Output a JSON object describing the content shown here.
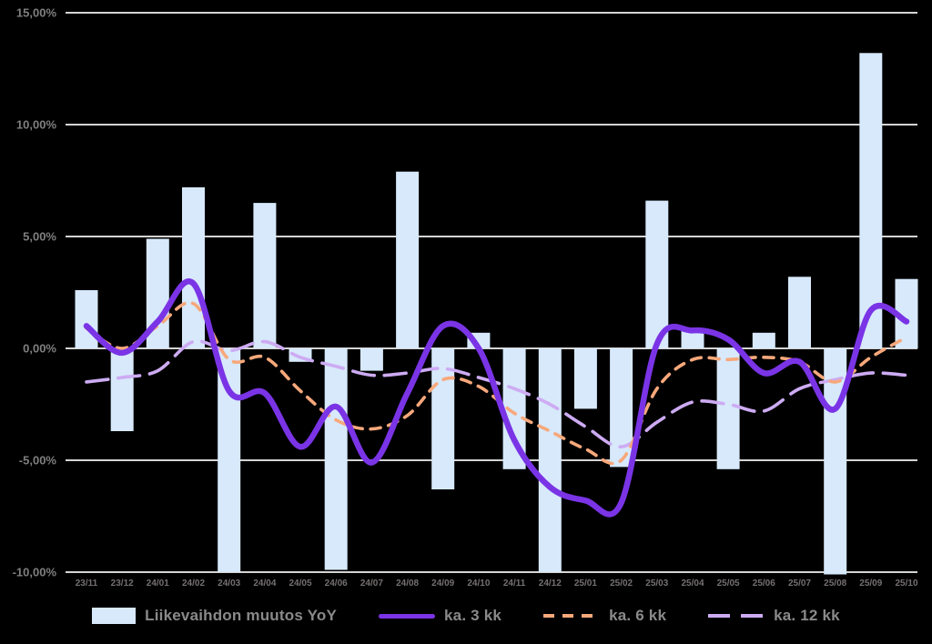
{
  "chart_data": {
    "type": "bar+line",
    "title": "",
    "categories": [
      "23/11",
      "23/12",
      "24/01",
      "24/02",
      "24/03",
      "24/04",
      "24/05",
      "24/06",
      "24/07",
      "24/08",
      "24/09",
      "24/10",
      "24/11",
      "24/12",
      "25/01",
      "25/02",
      "25/03",
      "25/04",
      "25/05",
      "25/06",
      "25/07",
      "25/08",
      "25/09",
      "25/10"
    ],
    "bar_series": {
      "name": "Liikevaihdon muutos YoY",
      "color": "#D7E9FB",
      "values": [
        2.6,
        -3.7,
        4.9,
        7.2,
        -10.0,
        6.5,
        -0.6,
        -9.9,
        -1.0,
        7.9,
        -6.3,
        0.7,
        -5.4,
        -10.0,
        -2.7,
        -5.3,
        6.6,
        0.8,
        -5.4,
        0.7,
        3.2,
        -10.1,
        13.2,
        3.1
      ]
    },
    "line_series": [
      {
        "name": "ka. 3 kk",
        "color": "#7A34E6",
        "style": "solid",
        "values": [
          1.0,
          -0.2,
          1.2,
          2.9,
          -1.9,
          -2.0,
          -4.4,
          -2.6,
          -5.1,
          -2.0,
          1.0,
          0.0,
          -4.1,
          -6.2,
          -6.8,
          -6.9,
          0.2,
          0.8,
          0.4,
          -1.1,
          -0.6,
          -2.7,
          1.7,
          1.2
        ]
      },
      {
        "name": "ka. 6 kk",
        "color": "#F7A87B",
        "style": "dashed",
        "values": [
          0.9,
          0.0,
          1.0,
          2.0,
          -0.5,
          -0.4,
          -1.9,
          -3.2,
          -3.6,
          -3.0,
          -1.4,
          -1.7,
          -2.9,
          -3.7,
          -4.5,
          -5.0,
          -1.8,
          -0.5,
          -0.5,
          -0.4,
          -0.6,
          -1.5,
          -0.4,
          0.5
        ]
      },
      {
        "name": "ka. 12 kk",
        "color": "#CDABF3",
        "style": "long-dashed",
        "values": [
          -1.5,
          -1.3,
          -1.0,
          0.3,
          -0.1,
          0.3,
          -0.4,
          -0.8,
          -1.2,
          -1.1,
          -0.9,
          -1.3,
          -1.8,
          -2.5,
          -3.5,
          -4.4,
          -3.3,
          -2.4,
          -2.5,
          -2.8,
          -1.8,
          -1.4,
          -1.1,
          -1.2
        ]
      }
    ],
    "y_axis": {
      "unit": "%",
      "min": -10,
      "max": 15,
      "tick_values": [
        15,
        10,
        5,
        0,
        -5,
        -10
      ],
      "tick_labels": [
        "15,00%",
        "10,00%",
        "5,00%",
        "0,00%",
        "-5,00%",
        "-10,00%"
      ]
    },
    "grid": true,
    "legend_position": "bottom"
  },
  "colors": {
    "background": "#000000",
    "grid": "#D4D4D4",
    "axis_text": "#7F7F7F",
    "legend_text": "#8A8A8A"
  }
}
